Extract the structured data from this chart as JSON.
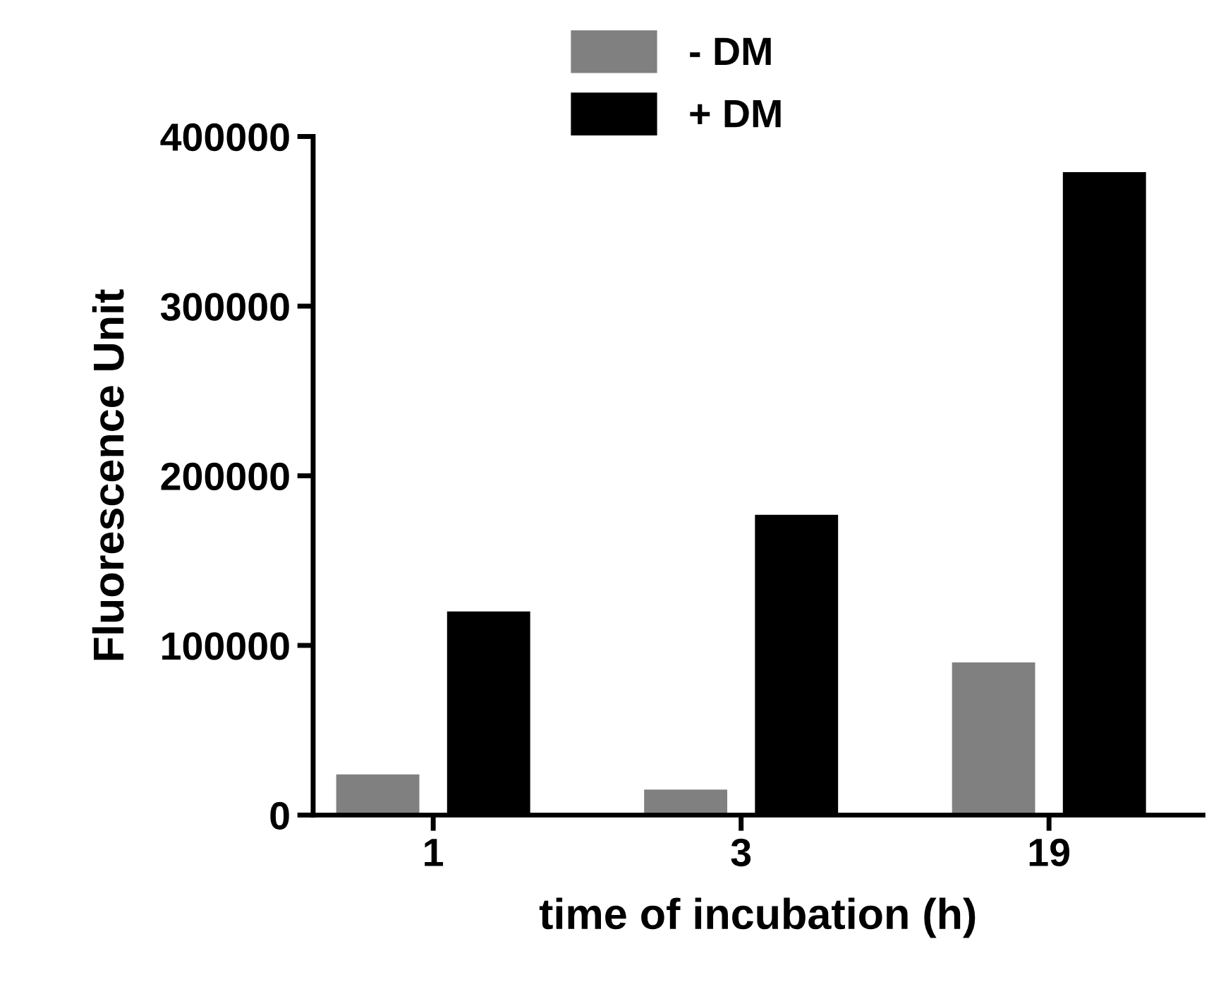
{
  "chart_data": {
    "type": "bar",
    "xlabel": "time of incubation (h)",
    "ylabel": "Fluorescence Unit",
    "categories": [
      "1",
      "3",
      "19"
    ],
    "series": [
      {
        "name": "- DM",
        "color": "#808080",
        "values": [
          24000,
          15000,
          90000
        ]
      },
      {
        "name": "+ DM",
        "color": "#000000",
        "values": [
          120000,
          177000,
          379000
        ]
      }
    ],
    "ylim": [
      0,
      400000
    ],
    "yticks": [
      0,
      100000,
      200000,
      300000,
      400000
    ],
    "grid": false,
    "legend": "top"
  }
}
